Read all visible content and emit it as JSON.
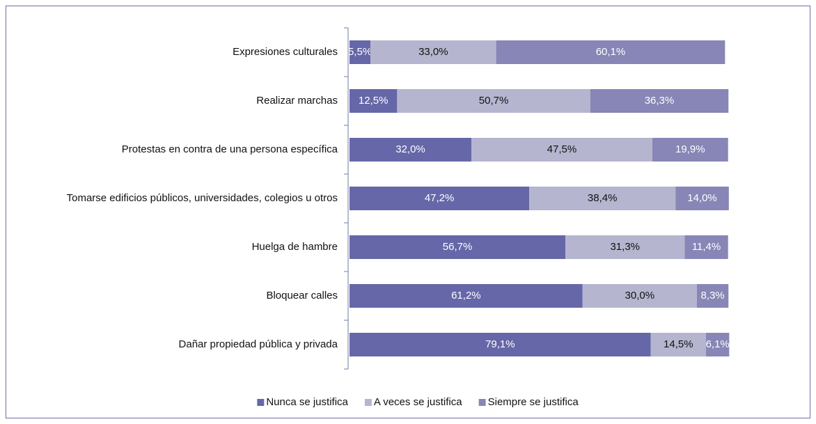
{
  "chart_data": {
    "type": "stacked-barh",
    "categories": [
      "Expresiones culturales",
      "Realizar marchas",
      "Protestas en contra de una persona específica",
      "Tomarse edificios públicos, universidades, colegios u otros",
      "Huelga de hambre",
      "Bloquear calles",
      "Dañar propiedad pública y privada"
    ],
    "series": [
      {
        "name": "Nunca se justifica",
        "color": "#6667a8",
        "values": [
          5.5,
          12.5,
          32.0,
          47.2,
          56.7,
          61.2,
          79.1
        ],
        "value_labels": [
          "5,5%",
          "12,5%",
          "32,0%",
          "47,2%",
          "56,7%",
          "61,2%",
          "79,1%"
        ]
      },
      {
        "name": "A veces se justifica",
        "color": "#b6b5cf",
        "values": [
          33.0,
          50.7,
          47.5,
          38.4,
          31.3,
          30.0,
          14.5
        ],
        "value_labels": [
          "33,0%",
          "50,7%",
          "47,5%",
          "38,4%",
          "31,3%",
          "30,0%",
          "14,5%"
        ]
      },
      {
        "name": "Siempre se justifica",
        "color": "#8786b6",
        "values": [
          60.1,
          36.3,
          19.9,
          14.0,
          11.4,
          8.3,
          6.1
        ],
        "value_labels": [
          "60,1%",
          "36,3%",
          "19,9%",
          "14,0%",
          "11,4%",
          "8,3%",
          "6,1%"
        ]
      }
    ],
    "xlim": [
      0,
      100
    ],
    "legend": "bottom"
  }
}
